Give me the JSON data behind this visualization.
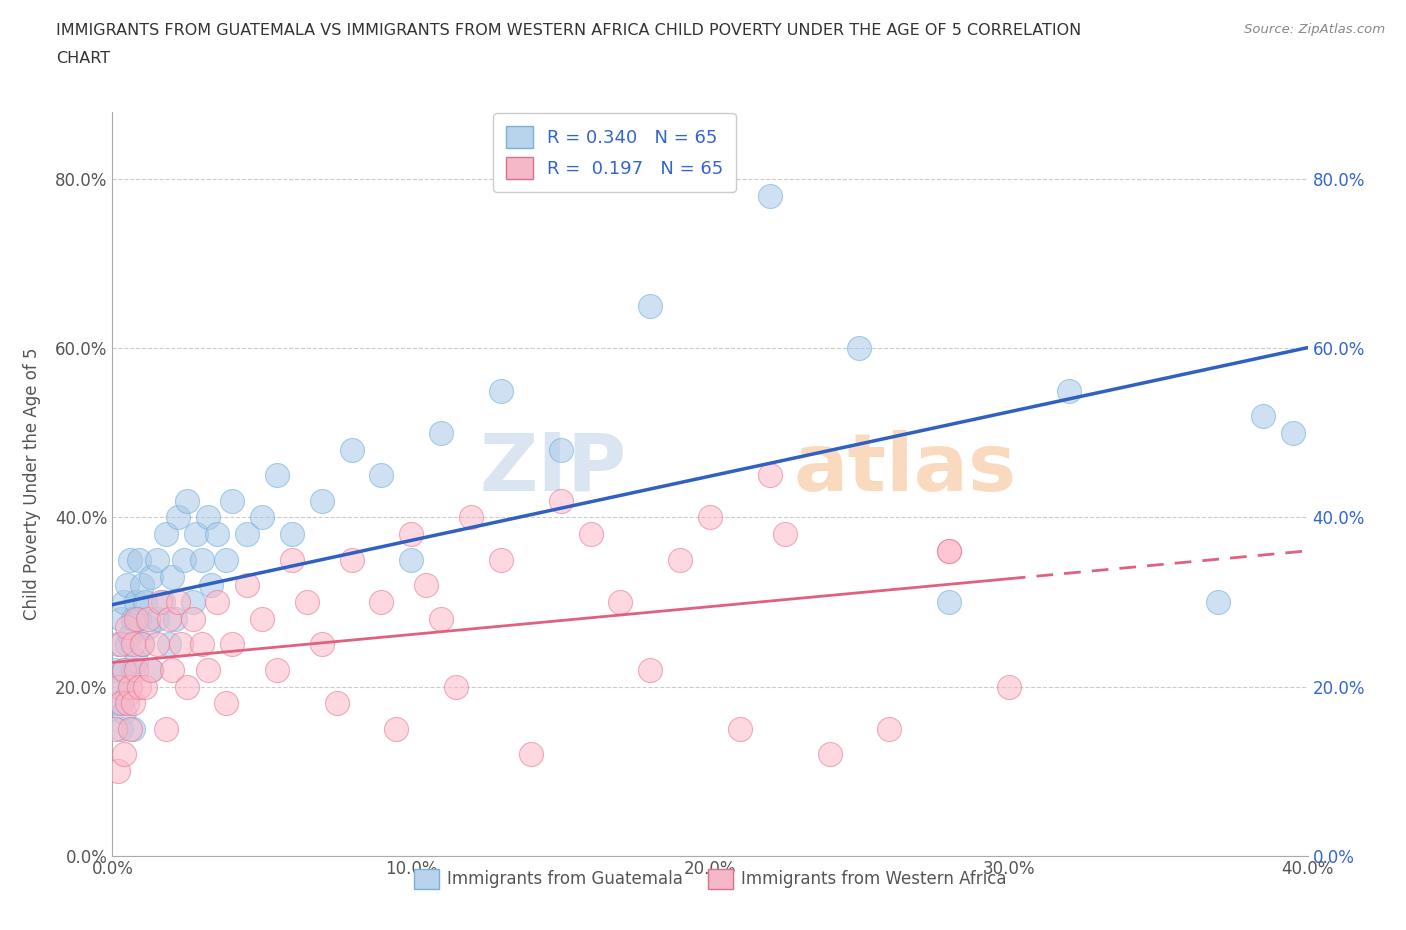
{
  "title_line1": "IMMIGRANTS FROM GUATEMALA VS IMMIGRANTS FROM WESTERN AFRICA CHILD POVERTY UNDER THE AGE OF 5 CORRELATION",
  "title_line2": "CHART",
  "source": "Source: ZipAtlas.com",
  "ylabel": "Child Poverty Under the Age of 5",
  "watermark": "ZIPAtlas",
  "R_guatemala": 0.34,
  "R_western_africa": 0.197,
  "N_guatemala": 65,
  "N_western_africa": 65,
  "color_guatemala": "#a8c8e8",
  "color_guatemala_edge": "#6baed6",
  "color_western_africa": "#fcb8c8",
  "color_western_africa_edge": "#e87090",
  "color_blue_line": "#3060c0",
  "color_pink_line": "#e06080",
  "color_blue_text": "#3366cc",
  "xlim": [
    0.0,
    0.4
  ],
  "ylim": [
    0.0,
    0.88
  ],
  "xticks": [
    0.0,
    0.1,
    0.2,
    0.3,
    0.4
  ],
  "yticks": [
    0.0,
    0.2,
    0.4,
    0.6,
    0.8
  ],
  "legend_labels": [
    "Immigrants from Guatemala",
    "Immigrants from Western Africa"
  ],
  "figsize": [
    14.06,
    9.3
  ],
  "dpi": 100,
  "guatemala_x": [
    0.001,
    0.002,
    0.002,
    0.003,
    0.003,
    0.003,
    0.004,
    0.004,
    0.004,
    0.005,
    0.005,
    0.005,
    0.006,
    0.006,
    0.006,
    0.007,
    0.007,
    0.007,
    0.008,
    0.008,
    0.009,
    0.009,
    0.01,
    0.01,
    0.011,
    0.012,
    0.013,
    0.013,
    0.015,
    0.015,
    0.017,
    0.018,
    0.019,
    0.02,
    0.021,
    0.022,
    0.024,
    0.025,
    0.027,
    0.028,
    0.03,
    0.032,
    0.033,
    0.035,
    0.038,
    0.04,
    0.045,
    0.05,
    0.055,
    0.06,
    0.07,
    0.08,
    0.09,
    0.1,
    0.11,
    0.13,
    0.15,
    0.18,
    0.22,
    0.25,
    0.28,
    0.32,
    0.37,
    0.385,
    0.395
  ],
  "guatemala_y": [
    0.22,
    0.18,
    0.25,
    0.2,
    0.15,
    0.28,
    0.22,
    0.17,
    0.3,
    0.25,
    0.19,
    0.32,
    0.26,
    0.2,
    0.35,
    0.28,
    0.22,
    0.15,
    0.3,
    0.23,
    0.28,
    0.35,
    0.32,
    0.25,
    0.3,
    0.27,
    0.33,
    0.22,
    0.28,
    0.35,
    0.3,
    0.38,
    0.25,
    0.33,
    0.28,
    0.4,
    0.35,
    0.42,
    0.3,
    0.38,
    0.35,
    0.4,
    0.32,
    0.38,
    0.35,
    0.42,
    0.38,
    0.4,
    0.45,
    0.38,
    0.42,
    0.48,
    0.45,
    0.35,
    0.5,
    0.55,
    0.48,
    0.65,
    0.78,
    0.6,
    0.3,
    0.55,
    0.3,
    0.52,
    0.5
  ],
  "western_africa_x": [
    0.001,
    0.002,
    0.002,
    0.003,
    0.003,
    0.004,
    0.004,
    0.005,
    0.005,
    0.006,
    0.006,
    0.007,
    0.007,
    0.008,
    0.008,
    0.009,
    0.01,
    0.011,
    0.012,
    0.013,
    0.015,
    0.016,
    0.018,
    0.019,
    0.02,
    0.022,
    0.023,
    0.025,
    0.027,
    0.03,
    0.032,
    0.035,
    0.038,
    0.04,
    0.045,
    0.05,
    0.055,
    0.06,
    0.065,
    0.07,
    0.075,
    0.08,
    0.09,
    0.095,
    0.1,
    0.105,
    0.11,
    0.115,
    0.12,
    0.13,
    0.14,
    0.15,
    0.16,
    0.17,
    0.18,
    0.19,
    0.2,
    0.21,
    0.22,
    0.225,
    0.24,
    0.26,
    0.28,
    0.3,
    0.28
  ],
  "western_africa_y": [
    0.15,
    0.1,
    0.2,
    0.18,
    0.25,
    0.12,
    0.22,
    0.18,
    0.27,
    0.2,
    0.15,
    0.25,
    0.18,
    0.22,
    0.28,
    0.2,
    0.25,
    0.2,
    0.28,
    0.22,
    0.25,
    0.3,
    0.15,
    0.28,
    0.22,
    0.3,
    0.25,
    0.2,
    0.28,
    0.25,
    0.22,
    0.3,
    0.18,
    0.25,
    0.32,
    0.28,
    0.22,
    0.35,
    0.3,
    0.25,
    0.18,
    0.35,
    0.3,
    0.15,
    0.38,
    0.32,
    0.28,
    0.2,
    0.4,
    0.35,
    0.12,
    0.42,
    0.38,
    0.3,
    0.22,
    0.35,
    0.4,
    0.15,
    0.45,
    0.38,
    0.12,
    0.15,
    0.36,
    0.2,
    0.36
  ]
}
